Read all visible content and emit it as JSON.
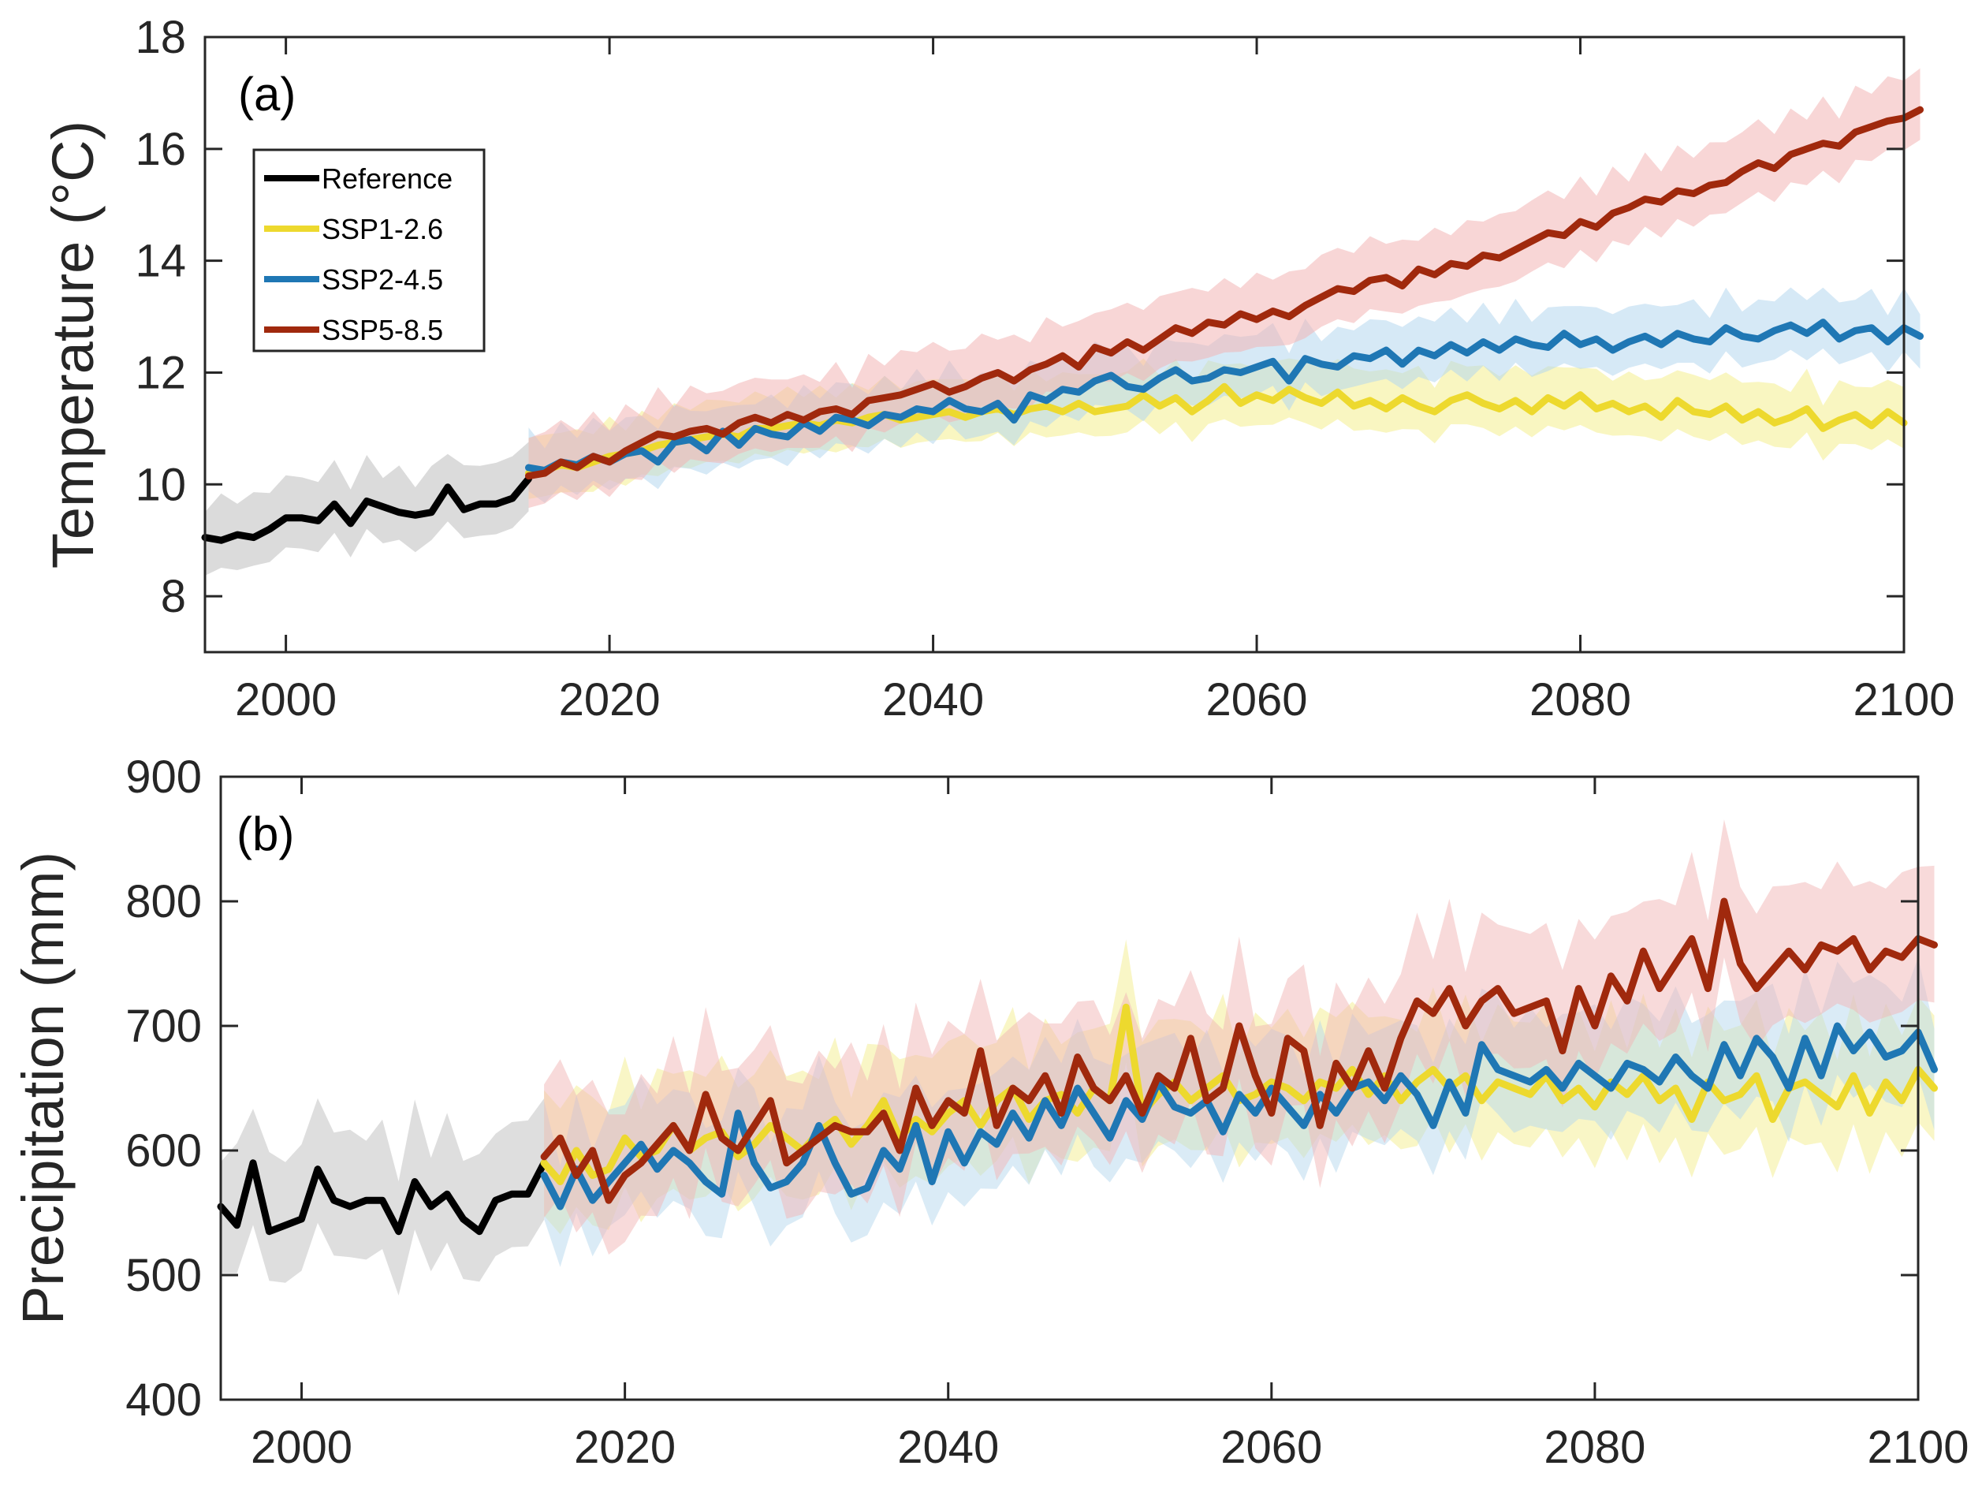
{
  "chart_data": [
    {
      "id": "a",
      "type": "line",
      "panel_label": "(a)",
      "ylabel": "Temperature (°C)",
      "xlabel": "",
      "xlim": [
        1995,
        2100
      ],
      "ylim": [
        7,
        18
      ],
      "xticks": [
        2000,
        2020,
        2040,
        2060,
        2080,
        2100
      ],
      "xtick_labels": [
        "2000",
        "2020",
        "2040",
        "2060",
        "2080",
        "2100"
      ],
      "yticks": [
        8,
        10,
        12,
        14,
        16,
        18
      ],
      "ytick_labels": [
        "8",
        "10",
        "12",
        "14",
        "16",
        "18"
      ],
      "legend": {
        "placement": "upper-left",
        "entries": [
          {
            "label": "Reference",
            "color": "#000000"
          },
          {
            "label": "SSP1-2.6",
            "color": "#EDD92E"
          },
          {
            "label": "SSP2-4.5",
            "color": "#1F77B4"
          },
          {
            "label": "SSP5-8.5",
            "color": "#A0290D"
          }
        ]
      },
      "series": [
        {
          "name": "Reference",
          "color": "#000000",
          "band_color": "#BDBDBD",
          "x_start": 1995,
          "spread": 0.7,
          "values": [
            9.05,
            9.0,
            9.1,
            9.05,
            9.2,
            9.4,
            9.4,
            9.35,
            9.65,
            9.3,
            9.7,
            9.6,
            9.5,
            9.45,
            9.5,
            9.95,
            9.55,
            9.65,
            9.65,
            9.75,
            10.1
          ]
        },
        {
          "name": "SSP1-2.6",
          "color": "#EDD92E",
          "band_color": "#F4EE8E",
          "x_start": 2015,
          "spread": 0.6,
          "values": [
            10.2,
            10.25,
            10.35,
            10.3,
            10.4,
            10.5,
            10.55,
            10.6,
            10.7,
            10.75,
            10.8,
            10.85,
            10.9,
            10.85,
            11.0,
            11.0,
            11.05,
            11.1,
            11.05,
            11.15,
            11.1,
            11.2,
            11.25,
            11.15,
            11.2,
            11.25,
            11.3,
            11.2,
            11.3,
            11.35,
            11.25,
            11.35,
            11.4,
            11.3,
            11.45,
            11.3,
            11.35,
            11.4,
            11.6,
            11.4,
            11.55,
            11.3,
            11.5,
            11.75,
            11.45,
            11.6,
            11.5,
            11.7,
            11.55,
            11.45,
            11.65,
            11.4,
            11.5,
            11.35,
            11.55,
            11.4,
            11.3,
            11.5,
            11.6,
            11.45,
            11.35,
            11.5,
            11.3,
            11.55,
            11.4,
            11.6,
            11.35,
            11.45,
            11.3,
            11.4,
            11.2,
            11.5,
            11.3,
            11.25,
            11.4,
            11.15,
            11.3,
            11.1,
            11.2,
            11.35,
            11.0,
            11.15,
            11.25,
            11.05,
            11.3,
            11.1
          ]
        },
        {
          "name": "SSP2-4.5",
          "color": "#1F77B4",
          "band_color": "#B5D7EE",
          "x_start": 2015,
          "spread": 0.6,
          "values": [
            10.3,
            10.25,
            10.4,
            10.35,
            10.5,
            10.4,
            10.55,
            10.6,
            10.4,
            10.75,
            10.8,
            10.6,
            10.95,
            10.7,
            11.0,
            10.9,
            10.85,
            11.1,
            10.95,
            11.2,
            11.15,
            11.05,
            11.25,
            11.2,
            11.35,
            11.3,
            11.5,
            11.35,
            11.3,
            11.45,
            11.15,
            11.6,
            11.5,
            11.7,
            11.65,
            11.85,
            11.95,
            11.75,
            11.7,
            11.9,
            12.05,
            11.85,
            11.9,
            12.05,
            12.0,
            12.1,
            12.2,
            11.85,
            12.25,
            12.15,
            12.1,
            12.3,
            12.25,
            12.4,
            12.15,
            12.4,
            12.3,
            12.5,
            12.35,
            12.55,
            12.4,
            12.6,
            12.5,
            12.45,
            12.7,
            12.5,
            12.6,
            12.4,
            12.55,
            12.65,
            12.5,
            12.7,
            12.6,
            12.55,
            12.8,
            12.65,
            12.6,
            12.75,
            12.85,
            12.7,
            12.9,
            12.6,
            12.75,
            12.8,
            12.55,
            12.8,
            12.65
          ]
        },
        {
          "name": "SSP5-8.5",
          "color": "#A0290D",
          "band_color": "#F2B5B5",
          "x_start": 2015,
          "spread": 0.7,
          "values": [
            10.15,
            10.2,
            10.4,
            10.3,
            10.5,
            10.4,
            10.6,
            10.75,
            10.9,
            10.85,
            10.95,
            11.0,
            10.9,
            11.1,
            11.2,
            11.1,
            11.25,
            11.15,
            11.3,
            11.35,
            11.25,
            11.5,
            11.55,
            11.6,
            11.7,
            11.8,
            11.65,
            11.75,
            11.9,
            12.0,
            11.85,
            12.05,
            12.15,
            12.3,
            12.1,
            12.45,
            12.35,
            12.55,
            12.4,
            12.6,
            12.8,
            12.7,
            12.9,
            12.85,
            13.05,
            12.95,
            13.1,
            13.0,
            13.2,
            13.35,
            13.5,
            13.45,
            13.65,
            13.7,
            13.55,
            13.85,
            13.75,
            13.95,
            13.9,
            14.1,
            14.05,
            14.2,
            14.35,
            14.5,
            14.45,
            14.7,
            14.6,
            14.85,
            14.95,
            15.1,
            15.05,
            15.25,
            15.2,
            15.35,
            15.4,
            15.6,
            15.75,
            15.65,
            15.9,
            16.0,
            16.1,
            16.05,
            16.3,
            16.4,
            16.5,
            16.55,
            16.7
          ]
        }
      ]
    },
    {
      "id": "b",
      "type": "line",
      "panel_label": "(b)",
      "ylabel": "Precipitation (mm)",
      "xlabel": "",
      "xlim": [
        1995,
        2100
      ],
      "ylim": [
        400,
        900
      ],
      "xticks": [
        2000,
        2020,
        2040,
        2060,
        2080,
        2100
      ],
      "xtick_labels": [
        "2000",
        "2020",
        "2040",
        "2060",
        "2080",
        "2100"
      ],
      "yticks": [
        400,
        500,
        600,
        700,
        800,
        900
      ],
      "ytick_labels": [
        "400",
        "500",
        "600",
        "700",
        "800",
        "900"
      ],
      "series": [
        {
          "name": "Reference",
          "color": "#000000",
          "band_color": "#BDBDBD",
          "x_start": 1995,
          "spread": 55,
          "values": [
            555,
            540,
            590,
            535,
            540,
            545,
            585,
            560,
            555,
            560,
            560,
            535,
            575,
            555,
            565,
            545,
            535,
            560,
            565,
            565,
            590
          ]
        },
        {
          "name": "SSP1-2.6",
          "color": "#EDD92E",
          "band_color": "#F4EE8E",
          "x_start": 2015,
          "spread": 55,
          "values": [
            590,
            575,
            600,
            580,
            585,
            610,
            595,
            600,
            620,
            600,
            610,
            615,
            595,
            605,
            620,
            610,
            600,
            615,
            625,
            605,
            620,
            640,
            610,
            625,
            615,
            630,
            640,
            620,
            640,
            650,
            625,
            640,
            645,
            630,
            650,
            640,
            715,
            630,
            645,
            655,
            640,
            650,
            660,
            640,
            645,
            655,
            650,
            640,
            655,
            650,
            665,
            645,
            660,
            640,
            655,
            665,
            650,
            660,
            640,
            655,
            650,
            645,
            660,
            640,
            650,
            635,
            655,
            645,
            660,
            640,
            650,
            625,
            655,
            640,
            645,
            660,
            625,
            650,
            655,
            645,
            635,
            660,
            630,
            655,
            640,
            665,
            650
          ]
        },
        {
          "name": "SSP2-4.5",
          "color": "#1F77B4",
          "band_color": "#B5D7EE",
          "x_start": 2015,
          "spread": 50,
          "values": [
            580,
            555,
            585,
            560,
            575,
            590,
            605,
            585,
            600,
            590,
            575,
            565,
            630,
            590,
            570,
            575,
            590,
            620,
            590,
            565,
            570,
            600,
            585,
            620,
            575,
            615,
            590,
            615,
            605,
            630,
            610,
            640,
            620,
            650,
            630,
            610,
            640,
            625,
            655,
            635,
            630,
            640,
            615,
            645,
            630,
            650,
            635,
            620,
            645,
            630,
            650,
            655,
            640,
            660,
            645,
            620,
            655,
            630,
            685,
            665,
            660,
            655,
            665,
            650,
            670,
            660,
            650,
            670,
            665,
            655,
            675,
            660,
            650,
            685,
            660,
            690,
            675,
            650,
            690,
            660,
            700,
            680,
            695,
            675,
            680,
            695,
            665
          ]
        },
        {
          "name": "SSP5-8.5",
          "color": "#A0290D",
          "band_color": "#F2B5B5",
          "x_start": 2015,
          "spread": 60,
          "values": [
            595,
            610,
            580,
            600,
            560,
            580,
            590,
            605,
            620,
            600,
            645,
            610,
            600,
            620,
            640,
            590,
            600,
            610,
            620,
            615,
            615,
            630,
            600,
            650,
            620,
            640,
            630,
            680,
            620,
            650,
            640,
            660,
            630,
            675,
            650,
            640,
            660,
            630,
            660,
            650,
            690,
            640,
            650,
            700,
            660,
            630,
            690,
            680,
            620,
            670,
            650,
            680,
            650,
            690,
            720,
            710,
            730,
            700,
            720,
            730,
            710,
            715,
            720,
            680,
            730,
            700,
            740,
            720,
            760,
            730,
            750,
            770,
            730,
            800,
            750,
            730,
            745,
            760,
            745,
            765,
            760,
            770,
            745,
            760,
            755,
            770,
            765
          ]
        }
      ]
    }
  ]
}
